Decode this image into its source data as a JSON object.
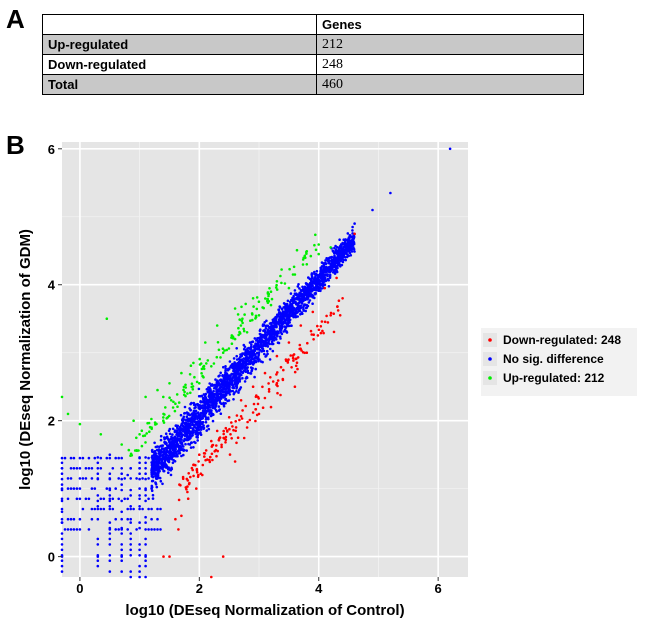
{
  "panel_a": {
    "label": "A",
    "header": [
      "",
      "Genes"
    ],
    "rows": [
      {
        "name": "Up-regulated",
        "genes": "212",
        "shaded": true
      },
      {
        "name": "Down-regulated",
        "genes": "248",
        "shaded": false
      },
      {
        "name": "Total",
        "genes": "460",
        "shaded": true
      }
    ]
  },
  "panel_b": {
    "label": "B"
  },
  "chart_data": {
    "type": "scatter",
    "xlabel": "log10 (DEseq Normalization of Control)",
    "ylabel": "log10 (DEseq Normalization of GDM)",
    "xlim": [
      -0.3,
      6.5
    ],
    "ylim": [
      -0.3,
      6.1
    ],
    "x_ticks": [
      0,
      2,
      4,
      6
    ],
    "y_ticks": [
      0,
      2,
      4,
      6
    ],
    "x_tick_labels": [
      "0",
      "2",
      "4",
      "6"
    ],
    "y_tick_labels": [
      "0",
      "2",
      "4",
      "6"
    ],
    "grid": true,
    "background": "#e5e5e5",
    "legend_position": "right",
    "series": [
      {
        "name": "Down-regulated: 248",
        "color": "#ff0000",
        "points": [
          [
            4.6,
            4.75
          ],
          [
            4.1,
            3.95
          ],
          [
            4.3,
            4.1
          ],
          [
            3.9,
            3.6
          ],
          [
            3.7,
            3.4
          ],
          [
            3.5,
            3.15
          ],
          [
            3.3,
            2.95
          ],
          [
            3.1,
            2.7
          ],
          [
            2.9,
            2.5
          ],
          [
            2.7,
            2.3
          ],
          [
            2.5,
            2.05
          ],
          [
            2.3,
            1.85
          ],
          [
            2.2,
            1.7
          ],
          [
            2.0,
            1.5
          ],
          [
            1.9,
            1.35
          ],
          [
            1.8,
            0.95
          ],
          [
            1.7,
            0.6
          ],
          [
            1.65,
            0.4
          ],
          [
            1.5,
            0.0
          ],
          [
            1.4,
            0.0
          ],
          [
            2.4,
            0.0
          ],
          [
            2.2,
            -0.3
          ],
          [
            3.2,
            2.2
          ],
          [
            3.6,
            2.5
          ],
          [
            2.6,
            1.4
          ],
          [
            2.8,
            1.9
          ],
          [
            3.0,
            2.1
          ],
          [
            3.4,
            2.6
          ],
          [
            3.8,
            3.0
          ],
          [
            4.2,
            3.55
          ],
          [
            4.4,
            3.8
          ],
          [
            3.45,
            2.9
          ],
          [
            2.65,
            1.75
          ],
          [
            1.95,
            1.0
          ],
          [
            2.05,
            1.2
          ],
          [
            1.6,
            0.55
          ]
        ]
      },
      {
        "name": "No sig. difference",
        "color": "#0000ff",
        "points": [
          [
            6.2,
            6.0
          ],
          [
            5.2,
            5.35
          ],
          [
            4.9,
            5.1
          ],
          [
            4.6,
            4.9
          ],
          [
            4.4,
            4.6
          ],
          [
            4.2,
            4.3
          ],
          [
            -0.3,
            1.3
          ],
          [
            -0.3,
            0.5
          ],
          [
            -0.3,
            0.0
          ],
          [
            0.3,
            0.0
          ],
          [
            0.7,
            0.0
          ],
          [
            1.1,
            0.0
          ],
          [
            0.5,
            1.5
          ],
          [
            0.8,
            1.2
          ],
          [
            1.0,
            1.45
          ]
        ]
      },
      {
        "name": "Up-regulated: 212",
        "color": "#00ee00",
        "points": [
          [
            0.45,
            3.5
          ],
          [
            4.0,
            4.45
          ],
          [
            3.6,
            4.15
          ],
          [
            3.2,
            3.7
          ],
          [
            3.0,
            3.55
          ],
          [
            2.8,
            3.3
          ],
          [
            2.6,
            3.2
          ],
          [
            2.4,
            3.0
          ],
          [
            2.2,
            2.8
          ],
          [
            2.0,
            2.55
          ],
          [
            1.8,
            2.4
          ],
          [
            1.6,
            2.25
          ],
          [
            1.4,
            2.1
          ],
          [
            1.2,
            1.9
          ],
          [
            1.0,
            1.8
          ],
          [
            0.7,
            1.65
          ],
          [
            0.35,
            1.8
          ],
          [
            -0.3,
            2.35
          ],
          [
            -0.2,
            2.1
          ],
          [
            0.0,
            1.95
          ],
          [
            1.1,
            2.35
          ],
          [
            1.5,
            2.55
          ],
          [
            2.1,
            3.15
          ],
          [
            2.6,
            3.65
          ],
          [
            3.3,
            4.05
          ],
          [
            3.8,
            4.3
          ],
          [
            1.3,
            2.45
          ],
          [
            1.9,
            2.85
          ],
          [
            2.3,
            3.4
          ],
          [
            2.9,
            3.8
          ],
          [
            0.9,
            2.0
          ],
          [
            1.7,
            2.7
          ],
          [
            3.5,
            3.95
          ],
          [
            4.2,
            4.55
          ]
        ]
      }
    ]
  }
}
